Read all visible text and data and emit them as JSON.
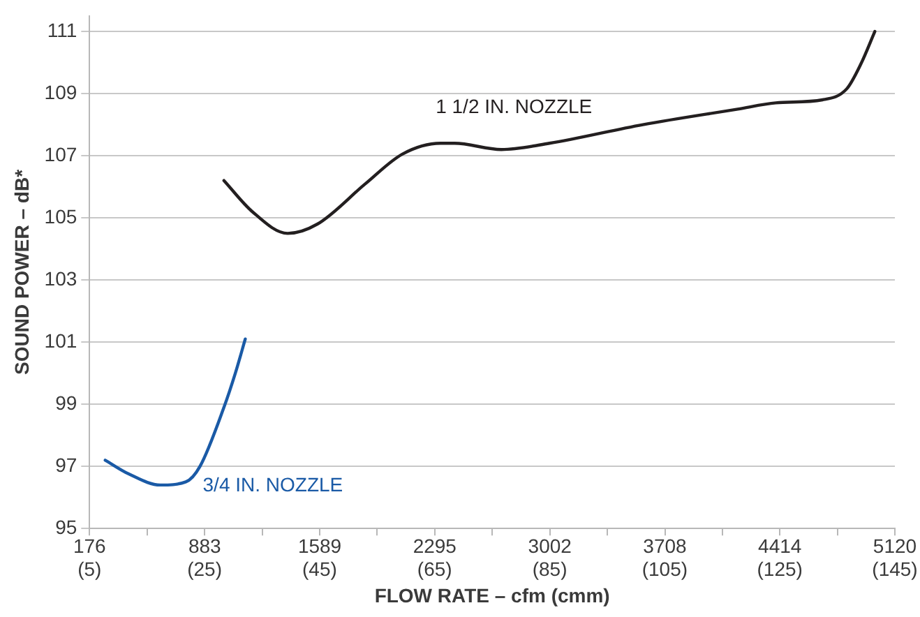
{
  "chart_data": {
    "type": "line",
    "xlabel": "FLOW RATE – cfm (cmm)",
    "ylabel": "SOUND POWER – dB*",
    "xlim": [
      176,
      5120
    ],
    "xticks": [
      176,
      {
        "value": 529.5,
        "label": null
      },
      883,
      {
        "value": 1236,
        "label": null
      },
      1589,
      {
        "value": 1942,
        "label": null
      },
      2295,
      {
        "value": 2648.5,
        "label": null
      },
      3002,
      {
        "value": 3355,
        "label": null
      },
      3708,
      {
        "value": 4061,
        "label": null
      },
      4414,
      {
        "value": 4767,
        "label": null
      },
      5120
    ],
    "x2lim": [
      5,
      145
    ],
    "x2ticks": [
      {
        "value": 5,
        "label": "(5)"
      },
      {
        "value": 25,
        "label": "(25)"
      },
      {
        "value": 45,
        "label": "(45)"
      },
      {
        "value": 65,
        "label": "(65)"
      },
      {
        "value": 85,
        "label": "(85)"
      },
      {
        "value": 105,
        "label": "(105)"
      },
      {
        "value": 125,
        "label": "(125)"
      },
      {
        "value": 145,
        "label": "(145)"
      }
    ],
    "ylim": [
      95,
      111.5
    ],
    "yticks": [
      95,
      97,
      99,
      101,
      103,
      105,
      107,
      109,
      111
    ],
    "grid": "y",
    "legend": false,
    "marker": "none",
    "line_style": "solid",
    "series": [
      {
        "name": "3/4 IN. NOZZLE",
        "color": "#1a5aa6",
        "x": [
          272,
          419,
          610,
          767,
          854,
          1001,
          1071,
          1132
        ],
        "values": [
          97.2,
          96.75,
          96.4,
          96.5,
          97.0,
          98.9,
          100.0,
          101.1
        ]
      },
      {
        "name": "1 1/2 IN. NOZZLE",
        "color": "#231f20",
        "x": [
          1001,
          1175,
          1392,
          1575,
          1870,
          2096,
          2331,
          2417,
          2704,
          2999,
          3573,
          4155,
          4389,
          4676,
          4824,
          4911,
          4997
        ],
        "values": [
          106.2,
          105.2,
          104.5,
          104.8,
          106.1,
          107.05,
          107.4,
          107.4,
          107.2,
          107.4,
          108.0,
          108.5,
          108.7,
          108.8,
          109.15,
          109.95,
          111
        ]
      }
    ]
  }
}
